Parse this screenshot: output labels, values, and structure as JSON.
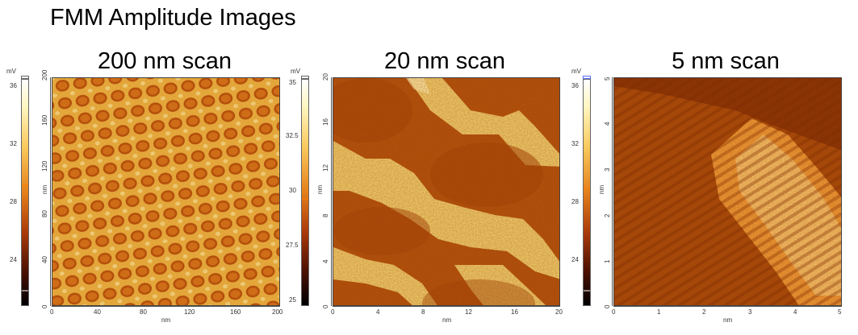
{
  "page_title": "FMM Amplitude Images",
  "panels": [
    {
      "title": "200 nm scan",
      "colorbar": {
        "unit": "mV",
        "ticks": [
          "36",
          "32",
          "28",
          "24"
        ]
      },
      "yaxis": {
        "label": "nm",
        "ticks": [
          "200",
          "160",
          "120",
          "80",
          "40",
          "0"
        ]
      },
      "xaxis": {
        "label": "nm",
        "ticks": [
          "0",
          "40",
          "80",
          "120",
          "160",
          "200"
        ]
      }
    },
    {
      "title": "20 nm scan",
      "colorbar": {
        "unit": "mV",
        "ticks": [
          "35",
          "32.5",
          "30",
          "27.5",
          "25"
        ]
      },
      "yaxis": {
        "label": "nm",
        "ticks": [
          "20",
          "16",
          "12",
          "8",
          "4",
          "0"
        ]
      },
      "xaxis": {
        "label": "nm",
        "ticks": [
          "0",
          "4",
          "8",
          "12",
          "16",
          "20"
        ]
      }
    },
    {
      "title": "5 nm scan",
      "colorbar": {
        "unit": "mV",
        "ticks": [
          "36",
          "32",
          "28",
          "24"
        ]
      },
      "yaxis": {
        "label": "nm",
        "ticks": [
          "5",
          "4",
          "3",
          "2",
          "1",
          "0"
        ]
      },
      "xaxis": {
        "label": "nm",
        "ticks": [
          "0",
          "1",
          "2",
          "3",
          "4",
          "5"
        ]
      }
    }
  ],
  "colors": {
    "dark": "#6e1a02",
    "mid": "#c0560e",
    "light": "#f5dc80",
    "highlight": "#fff4b8"
  }
}
